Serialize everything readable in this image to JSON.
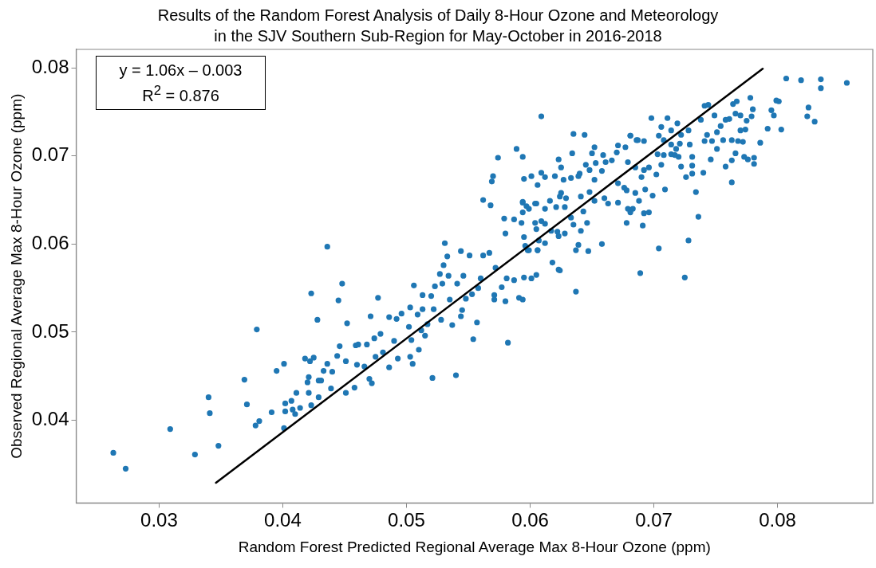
{
  "chart_data": {
    "type": "scatter",
    "title": "Results of the Random Forest Analysis of Daily 8-Hour Ozone and Meteorology in the SJV Southern Sub-Region for May-October in 2016-2018",
    "xlabel": "Random Forest Predicted Regional Average Max 8-Hour Ozone (ppm)",
    "ylabel": "Observed Regional Average Max 8-Hour Ozone (ppm)",
    "annotations": [
      "y = 1.06x – 0.003",
      "R$^{2}$ = 0.876"
    ],
    "xlim": [
      0.0233,
      0.0877
    ],
    "ylim": [
      0.0306,
      0.0821
    ],
    "xticks": [
      0.03,
      0.04,
      0.05,
      0.06,
      0.07,
      0.08
    ],
    "yticks": [
      0.04,
      0.05,
      0.06,
      0.07,
      0.08
    ],
    "grid": false,
    "legend": false,
    "marker": "circle",
    "series": [
      {
        "type": "scatter",
        "color": "#1f77b4",
        "x": [
          0.0263,
          0.0273,
          0.0309,
          0.0329,
          0.0348,
          0.034,
          0.0341,
          0.0379,
          0.0369,
          0.0371,
          0.0378,
          0.0381,
          0.0391,
          0.0395,
          0.0401,
          0.0401,
          0.0402,
          0.0402,
          0.0407,
          0.0408,
          0.041,
          0.0411,
          0.0414,
          0.0418,
          0.0421,
          0.0421,
          0.042,
          0.0422,
          0.0423,
          0.0425,
          0.0428,
          0.0429,
          0.0429,
          0.0423,
          0.0431,
          0.0433,
          0.0436,
          0.0439,
          0.044,
          0.0436,
          0.0448,
          0.0445,
          0.0452,
          0.0446,
          0.0459,
          0.0461,
          0.0471,
          0.0477,
          0.0474,
          0.0479,
          0.0468,
          0.0444,
          0.0451,
          0.046,
          0.0466,
          0.0451,
          0.0458,
          0.0472,
          0.047,
          0.0475,
          0.0481,
          0.0486,
          0.0492,
          0.0496,
          0.049,
          0.0493,
          0.0486,
          0.0503,
          0.0505,
          0.0502,
          0.0503,
          0.0506,
          0.051,
          0.0504,
          0.0509,
          0.0513,
          0.0513,
          0.0515,
          0.0512,
          0.0521,
          0.0517,
          0.052,
          0.0522,
          0.0523,
          0.0528,
          0.0529,
          0.0527,
          0.053,
          0.0531,
          0.0533,
          0.0534,
          0.0535,
          0.0537,
          0.054,
          0.0544,
          0.0545,
          0.0544,
          0.0541,
          0.0546,
          0.0548,
          0.0551,
          0.0553,
          0.0554,
          0.0557,
          0.0558,
          0.056,
          0.0562,
          0.0562,
          0.0568,
          0.0567,
          0.0571,
          0.0571,
          0.0572,
          0.0577,
          0.0582,
          0.058,
          0.0581,
          0.0579,
          0.058,
          0.0587,
          0.0587,
          0.0591,
          0.0594,
          0.0595,
          0.0601,
          0.0605,
          0.0594,
          0.0598,
          0.0606,
          0.0604,
          0.0616,
          0.0618,
          0.0623,
          0.0612,
          0.0609,
          0.0635,
          0.0644,
          0.0589,
          0.0574,
          0.0594,
          0.057,
          0.0569,
          0.0595,
          0.0601,
          0.0606,
          0.0609,
          0.0612,
          0.062,
          0.0623,
          0.0625,
          0.0634,
          0.0627,
          0.0633,
          0.0639,
          0.064,
          0.0645,
          0.065,
          0.0652,
          0.0659,
          0.0653,
          0.0648,
          0.0652,
          0.0658,
          0.0661,
          0.0666,
          0.067,
          0.0671,
          0.0677,
          0.0681,
          0.0686,
          0.0698,
          0.0711,
          0.0706,
          0.0719,
          0.0594,
          0.0597,
          0.0599,
          0.0594,
          0.0605,
          0.0621,
          0.0624,
          0.0625,
          0.0629,
          0.0628,
          0.0641,
          0.0648,
          0.0652,
          0.066,
          0.0663,
          0.0671,
          0.0671,
          0.0676,
          0.0679,
          0.0683,
          0.0681,
          0.0678,
          0.0691,
          0.0692,
          0.0696,
          0.0699,
          0.0689,
          0.0704,
          0.0709,
          0.0593,
          0.0604,
          0.0609,
          0.0605,
          0.0612,
          0.0595,
          0.0596,
          0.0599,
          0.0606,
          0.0612,
          0.0607,
          0.0617,
          0.0622,
          0.0623,
          0.0628,
          0.0635,
          0.0637,
          0.0639,
          0.0647,
          0.0658,
          0.0637,
          0.0624,
          0.0641,
          0.0646,
          0.0633,
          0.0643,
          0.0807,
          0.0819,
          0.0835,
          0.0835,
          0.0856,
          0.0825,
          0.0824,
          0.083,
          0.0799,
          0.0801,
          0.0795,
          0.0797,
          0.0803,
          0.0792,
          0.0786,
          0.0778,
          0.078,
          0.0779,
          0.0775,
          0.0767,
          0.0764,
          0.077,
          0.0766,
          0.0761,
          0.0758,
          0.0774,
          0.077,
          0.0772,
          0.0768,
          0.0763,
          0.0766,
          0.0773,
          0.0776,
          0.0781,
          0.0781,
          0.0763,
          0.0758,
          0.0763,
          0.0751,
          0.0754,
          0.0741,
          0.0744,
          0.0749,
          0.0756,
          0.0751,
          0.0746,
          0.0747,
          0.0743,
          0.0738,
          0.0741,
          0.074,
          0.0736,
          0.0734,
          0.0728,
          0.0725,
          0.0731,
          0.0731,
          0.0726,
          0.0722,
          0.0731,
          0.0729,
          0.0721,
          0.0718,
          0.072,
          0.0728,
          0.0722,
          0.0714,
          0.0708,
          0.0704,
          0.0706,
          0.0708,
          0.0702,
          0.0696,
          0.0693,
          0.0688,
          0.0685,
          0.0678,
          0.069,
          0.0692,
          0.0685,
          0.0679,
          0.0687,
          0.0681,
          0.0692,
          0.0703,
          0.0714,
          0.0714,
          0.0717
        ],
        "values": [
          0.0363,
          0.0345,
          0.039,
          0.0361,
          0.0371,
          0.0426,
          0.0408,
          0.0503,
          0.0446,
          0.0418,
          0.0394,
          0.0399,
          0.0409,
          0.0456,
          0.0464,
          0.0391,
          0.0419,
          0.041,
          0.0422,
          0.0412,
          0.0407,
          0.0431,
          0.0414,
          0.047,
          0.0431,
          0.0449,
          0.0443,
          0.0467,
          0.0544,
          0.0471,
          0.0514,
          0.0426,
          0.0445,
          0.0417,
          0.0445,
          0.0456,
          0.0464,
          0.0436,
          0.0455,
          0.0597,
          0.0555,
          0.0536,
          0.051,
          0.0484,
          0.0485,
          0.0486,
          0.0518,
          0.0539,
          0.0493,
          0.0498,
          0.0486,
          0.0473,
          0.0467,
          0.0463,
          0.0461,
          0.0431,
          0.0437,
          0.0442,
          0.0447,
          0.0472,
          0.0477,
          0.0517,
          0.0515,
          0.0521,
          0.049,
          0.047,
          0.046,
          0.0472,
          0.0464,
          0.0506,
          0.0528,
          0.0553,
          0.048,
          0.0491,
          0.052,
          0.0526,
          0.0542,
          0.0496,
          0.0502,
          0.0448,
          0.0509,
          0.0541,
          0.0526,
          0.0552,
          0.0514,
          0.0555,
          0.0566,
          0.0576,
          0.0601,
          0.0586,
          0.0564,
          0.0537,
          0.0508,
          0.0451,
          0.0518,
          0.0525,
          0.0592,
          0.0555,
          0.0564,
          0.0538,
          0.0587,
          0.0543,
          0.0492,
          0.0511,
          0.055,
          0.0561,
          0.0587,
          0.065,
          0.0644,
          0.059,
          0.0537,
          0.0542,
          0.0573,
          0.0551,
          0.0488,
          0.0535,
          0.0561,
          0.0629,
          0.0612,
          0.0628,
          0.0559,
          0.0539,
          0.0537,
          0.0562,
          0.0561,
          0.0565,
          0.0648,
          0.0593,
          0.0593,
          0.0646,
          0.0649,
          0.0579,
          0.0571,
          0.064,
          0.0745,
          0.0725,
          0.0724,
          0.0708,
          0.0698,
          0.0699,
          0.0677,
          0.0671,
          0.0674,
          0.0677,
          0.0667,
          0.0681,
          0.0676,
          0.0677,
          0.0696,
          0.0687,
          0.0703,
          0.0673,
          0.0675,
          0.0677,
          0.068,
          0.069,
          0.0703,
          0.071,
          0.0701,
          0.0692,
          0.0684,
          0.0673,
          0.0683,
          0.0693,
          0.0695,
          0.0704,
          0.0712,
          0.071,
          0.0723,
          0.0718,
          0.0743,
          0.0743,
          0.0733,
          0.0737,
          0.0647,
          0.0643,
          0.064,
          0.0636,
          0.0646,
          0.0642,
          0.0654,
          0.0658,
          0.0652,
          0.0642,
          0.0654,
          0.0659,
          0.0649,
          0.0652,
          0.0646,
          0.0647,
          0.0669,
          0.0664,
          0.064,
          0.064,
          0.0636,
          0.0624,
          0.0621,
          0.0635,
          0.0636,
          0.0655,
          0.0567,
          0.0595,
          0.0662,
          0.0624,
          0.0624,
          0.0626,
          0.0617,
          0.0623,
          0.0608,
          0.0598,
          0.0593,
          0.0593,
          0.0601,
          0.0604,
          0.0615,
          0.0614,
          0.0609,
          0.0612,
          0.0622,
          0.0593,
          0.0599,
          0.0592,
          0.06,
          0.0546,
          0.057,
          0.0615,
          0.0624,
          0.063,
          0.0637,
          0.0788,
          0.0786,
          0.0787,
          0.0777,
          0.0783,
          0.0755,
          0.0745,
          0.0739,
          0.0763,
          0.0762,
          0.0752,
          0.0746,
          0.073,
          0.0731,
          0.0715,
          0.0766,
          0.0753,
          0.0745,
          0.074,
          0.0762,
          0.0759,
          0.0746,
          0.0748,
          0.0742,
          0.0741,
          0.073,
          0.0729,
          0.0716,
          0.0717,
          0.0718,
          0.0703,
          0.0699,
          0.0696,
          0.0698,
          0.0691,
          0.0695,
          0.0688,
          0.067,
          0.0727,
          0.0734,
          0.0757,
          0.0758,
          0.0746,
          0.0718,
          0.0708,
          0.0696,
          0.0717,
          0.0724,
          0.0741,
          0.0717,
          0.0681,
          0.0631,
          0.0659,
          0.0604,
          0.0562,
          0.068,
          0.0689,
          0.0676,
          0.0688,
          0.0699,
          0.0713,
          0.0714,
          0.0708,
          0.0699,
          0.0729,
          0.0724,
          0.0729,
          0.0718,
          0.0723,
          0.069,
          0.0701,
          0.0679,
          0.0687,
          0.0662,
          0.0649,
          0.0658,
          0.0661,
          0.0676,
          0.0684,
          0.0687,
          0.0693,
          0.0718,
          0.0723,
          0.0717,
          0.0702,
          0.0713,
          0.0702,
          0.0701
        ]
      },
      {
        "type": "line",
        "color": "#000000",
        "marker": "none",
        "line_style": "solid",
        "x": [
          0.0346,
          0.0788
        ],
        "values": [
          0.0329,
          0.0799
        ]
      }
    ]
  }
}
